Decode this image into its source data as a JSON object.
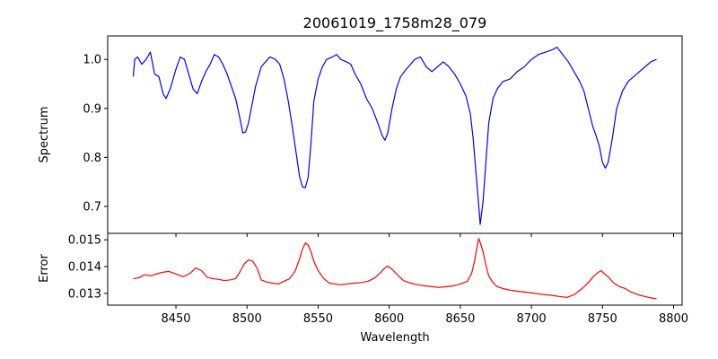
{
  "chart_data": [
    {
      "type": "line",
      "title": "20061019_1758m28_079",
      "xlabel": "",
      "ylabel": "Spectrum",
      "xlim": [
        8402,
        8806
      ],
      "ylim": [
        0.645,
        1.048
      ],
      "xticks": [
        8450,
        8500,
        8550,
        8600,
        8650,
        8700,
        8750,
        8800
      ],
      "yticks": [
        0.7,
        0.8,
        0.9,
        1.0
      ],
      "ytick_labels": [
        "0.7",
        "0.8",
        "0.9",
        "1.0"
      ],
      "grid": false,
      "series": [
        {
          "color": "#0000ff",
          "x": [
            8420,
            8421,
            8423,
            8426,
            8429,
            8432,
            8435,
            8438,
            8441,
            8443,
            8446,
            8450,
            8453,
            8456,
            8459,
            8462,
            8465,
            8468,
            8471,
            8474,
            8477,
            8480,
            8483,
            8486,
            8489,
            8492,
            8495,
            8497,
            8499,
            8501,
            8503,
            8506,
            8510,
            8513,
            8516,
            8520,
            8523,
            8526,
            8529,
            8532,
            8535,
            8537,
            8539,
            8541,
            8543,
            8545,
            8547,
            8550,
            8553,
            8556,
            8560,
            8563,
            8566,
            8570,
            8573,
            8576,
            8580,
            8584,
            8588,
            8592,
            8595,
            8597,
            8599,
            8602,
            8605,
            8608,
            8612,
            8615,
            8618,
            8622,
            8626,
            8630,
            8634,
            8638,
            8642,
            8646,
            8650,
            8654,
            8657,
            8659,
            8661,
            8663,
            8664,
            8666,
            8668,
            8670,
            8673,
            8676,
            8680,
            8685,
            8690,
            8695,
            8700,
            8705,
            8710,
            8715,
            8718,
            8722,
            8726,
            8730,
            8734,
            8737,
            8740,
            8743,
            8746,
            8748,
            8750,
            8752,
            8754,
            8757,
            8760,
            8764,
            8768,
            8772,
            8776,
            8780,
            8784,
            8788
          ],
          "y": [
            0.965,
            1.0,
            1.005,
            0.99,
            1.0,
            1.015,
            0.97,
            0.965,
            0.93,
            0.92,
            0.94,
            0.98,
            1.005,
            1.0,
            0.97,
            0.94,
            0.93,
            0.955,
            0.975,
            0.99,
            1.01,
            1.005,
            0.99,
            0.97,
            0.945,
            0.92,
            0.88,
            0.85,
            0.852,
            0.87,
            0.9,
            0.945,
            0.985,
            0.995,
            1.005,
            1.0,
            0.99,
            0.96,
            0.915,
            0.86,
            0.8,
            0.76,
            0.74,
            0.738,
            0.76,
            0.83,
            0.915,
            0.96,
            0.985,
            1.0,
            1.005,
            1.01,
            1.0,
            0.995,
            0.99,
            0.97,
            0.95,
            0.92,
            0.9,
            0.87,
            0.845,
            0.835,
            0.85,
            0.9,
            0.94,
            0.965,
            0.98,
            0.99,
            1.0,
            1.005,
            0.985,
            0.975,
            0.985,
            0.995,
            0.985,
            0.97,
            0.95,
            0.925,
            0.89,
            0.84,
            0.77,
            0.7,
            0.663,
            0.71,
            0.79,
            0.87,
            0.92,
            0.94,
            0.955,
            0.96,
            0.975,
            0.985,
            1.0,
            1.01,
            1.015,
            1.02,
            1.025,
            1.01,
            0.995,
            0.975,
            0.955,
            0.935,
            0.9,
            0.865,
            0.84,
            0.82,
            0.79,
            0.778,
            0.79,
            0.84,
            0.9,
            0.935,
            0.955,
            0.965,
            0.975,
            0.985,
            0.995,
            1.0
          ]
        }
      ]
    },
    {
      "type": "line",
      "title": "",
      "xlabel": "Wavelength",
      "ylabel": "Error",
      "xlim": [
        8402,
        8806
      ],
      "ylim": [
        0.01256,
        0.01524
      ],
      "xticks": [
        8450,
        8500,
        8550,
        8600,
        8650,
        8700,
        8750,
        8800
      ],
      "yticks": [
        0.013,
        0.014,
        0.015
      ],
      "ytick_labels": [
        "0.013",
        "0.014",
        "0.015"
      ],
      "grid": false,
      "series": [
        {
          "color": "#ff0000",
          "x": [
            8420,
            8424,
            8428,
            8432,
            8436,
            8440,
            8445,
            8450,
            8455,
            8460,
            8464,
            8468,
            8472,
            8476,
            8480,
            8484,
            8488,
            8492,
            8495,
            8498,
            8501,
            8504,
            8507,
            8510,
            8514,
            8518,
            8522,
            8526,
            8530,
            8534,
            8537,
            8539,
            8541,
            8543,
            8545,
            8547,
            8550,
            8554,
            8558,
            8562,
            8566,
            8570,
            8575,
            8580,
            8585,
            8590,
            8594,
            8597,
            8599,
            8602,
            8606,
            8610,
            8615,
            8620,
            8625,
            8630,
            8635,
            8640,
            8645,
            8650,
            8655,
            8658,
            8660,
            8662,
            8663,
            8664,
            8666,
            8668,
            8670,
            8673,
            8676,
            8680,
            8685,
            8690,
            8695,
            8700,
            8705,
            8710,
            8715,
            8720,
            8725,
            8730,
            8735,
            8740,
            8744,
            8747,
            8749,
            8751,
            8754,
            8758,
            8762,
            8766,
            8770,
            8775,
            8780,
            8785,
            8788
          ],
          "y": [
            0.01355,
            0.01358,
            0.0137,
            0.01365,
            0.01372,
            0.01378,
            0.01382,
            0.01372,
            0.01362,
            0.01375,
            0.01395,
            0.01385,
            0.0136,
            0.01355,
            0.01352,
            0.01348,
            0.0135,
            0.01355,
            0.0138,
            0.0141,
            0.01425,
            0.0142,
            0.01395,
            0.0135,
            0.01342,
            0.01338,
            0.01335,
            0.01345,
            0.01355,
            0.01385,
            0.0143,
            0.01465,
            0.01488,
            0.0148,
            0.01455,
            0.0142,
            0.01385,
            0.01355,
            0.01338,
            0.01335,
            0.01332,
            0.01335,
            0.01338,
            0.0134,
            0.01345,
            0.01358,
            0.01378,
            0.01395,
            0.01402,
            0.0139,
            0.01368,
            0.01348,
            0.01338,
            0.01332,
            0.01328,
            0.01325,
            0.01322,
            0.01325,
            0.01328,
            0.01335,
            0.01345,
            0.01375,
            0.0142,
            0.0148,
            0.01505,
            0.0149,
            0.01455,
            0.01405,
            0.01365,
            0.0134,
            0.01325,
            0.01318,
            0.01312,
            0.01308,
            0.01305,
            0.01302,
            0.01298,
            0.01295,
            0.01292,
            0.01288,
            0.01285,
            0.01295,
            0.01315,
            0.0134,
            0.01365,
            0.01378,
            0.01385,
            0.01375,
            0.01362,
            0.01338,
            0.01325,
            0.01318,
            0.01305,
            0.01295,
            0.01288,
            0.01282,
            0.0128
          ]
        }
      ]
    }
  ]
}
